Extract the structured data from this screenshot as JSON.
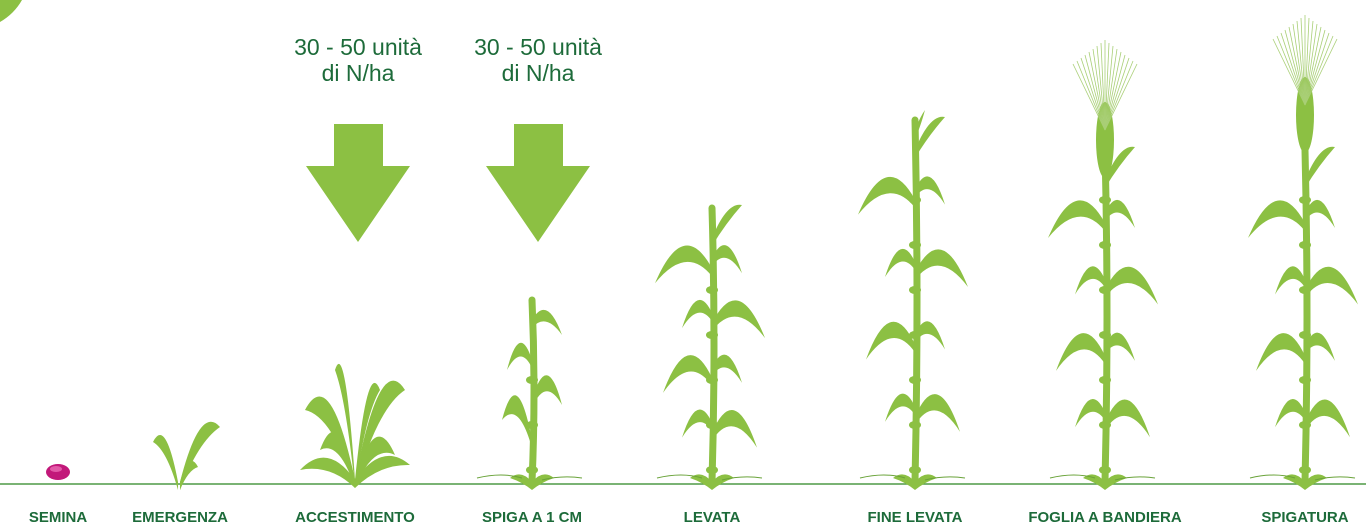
{
  "stages": [
    {
      "label": "SEMINA"
    },
    {
      "label": "EMERGENZA"
    },
    {
      "label": "ACCESTIMENTO"
    },
    {
      "label": "SPIGA A 1 CM"
    },
    {
      "label": "LEVATA"
    },
    {
      "label": "FINE LEVATA"
    },
    {
      "label": "FOGLIA A BANDIERA"
    },
    {
      "label": "SPIGATURA"
    }
  ],
  "fertilizations": [
    {
      "lines": [
        "30 - 50 unità",
        "di N/ha"
      ]
    },
    {
      "lines": [
        "30 - 50 unità",
        "di N/ha"
      ]
    }
  ]
}
